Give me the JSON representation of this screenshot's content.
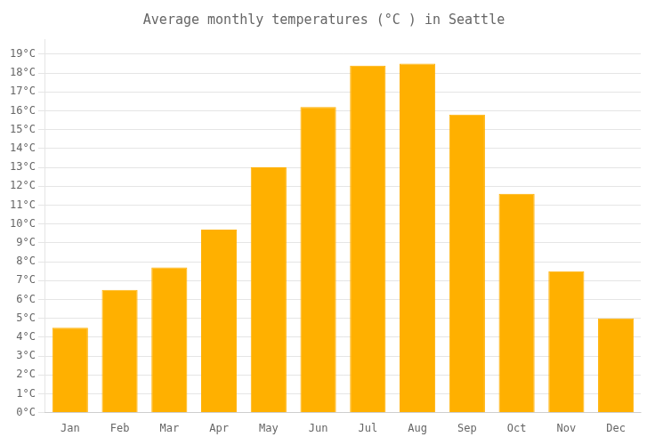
{
  "chart_data": {
    "type": "bar",
    "title": "Average monthly temperatures (°C ) in Seattle",
    "categories": [
      "Jan",
      "Feb",
      "Mar",
      "Apr",
      "May",
      "Jun",
      "Jul",
      "Aug",
      "Sep",
      "Oct",
      "Nov",
      "Dec"
    ],
    "values": [
      4.5,
      6.5,
      7.7,
      9.7,
      13.0,
      16.2,
      18.4,
      18.5,
      15.8,
      11.6,
      7.5,
      5.0
    ],
    "color": "#FFB000",
    "ylim": [
      0,
      19.8
    ],
    "yticks": [
      {
        "value": 0,
        "label": "0°C"
      },
      {
        "value": 1,
        "label": "1°C"
      },
      {
        "value": 2,
        "label": "2°C"
      },
      {
        "value": 3,
        "label": "3°C"
      },
      {
        "value": 4,
        "label": "4°C"
      },
      {
        "value": 5,
        "label": "5°C"
      },
      {
        "value": 6,
        "label": "6°C"
      },
      {
        "value": 7,
        "label": "7°C"
      },
      {
        "value": 8,
        "label": "8°C"
      },
      {
        "value": 9,
        "label": "9°C"
      },
      {
        "value": 10,
        "label": "10°C"
      },
      {
        "value": 11,
        "label": "11°C"
      },
      {
        "value": 12,
        "label": "12°C"
      },
      {
        "value": 13,
        "label": "13°C"
      },
      {
        "value": 14,
        "label": "14°C"
      },
      {
        "value": 15,
        "label": "15°C"
      },
      {
        "value": 16,
        "label": "16°C"
      },
      {
        "value": 17,
        "label": "17°C"
      },
      {
        "value": 18,
        "label": "18°C"
      },
      {
        "value": 19,
        "label": "19°C"
      }
    ],
    "grid": true
  }
}
